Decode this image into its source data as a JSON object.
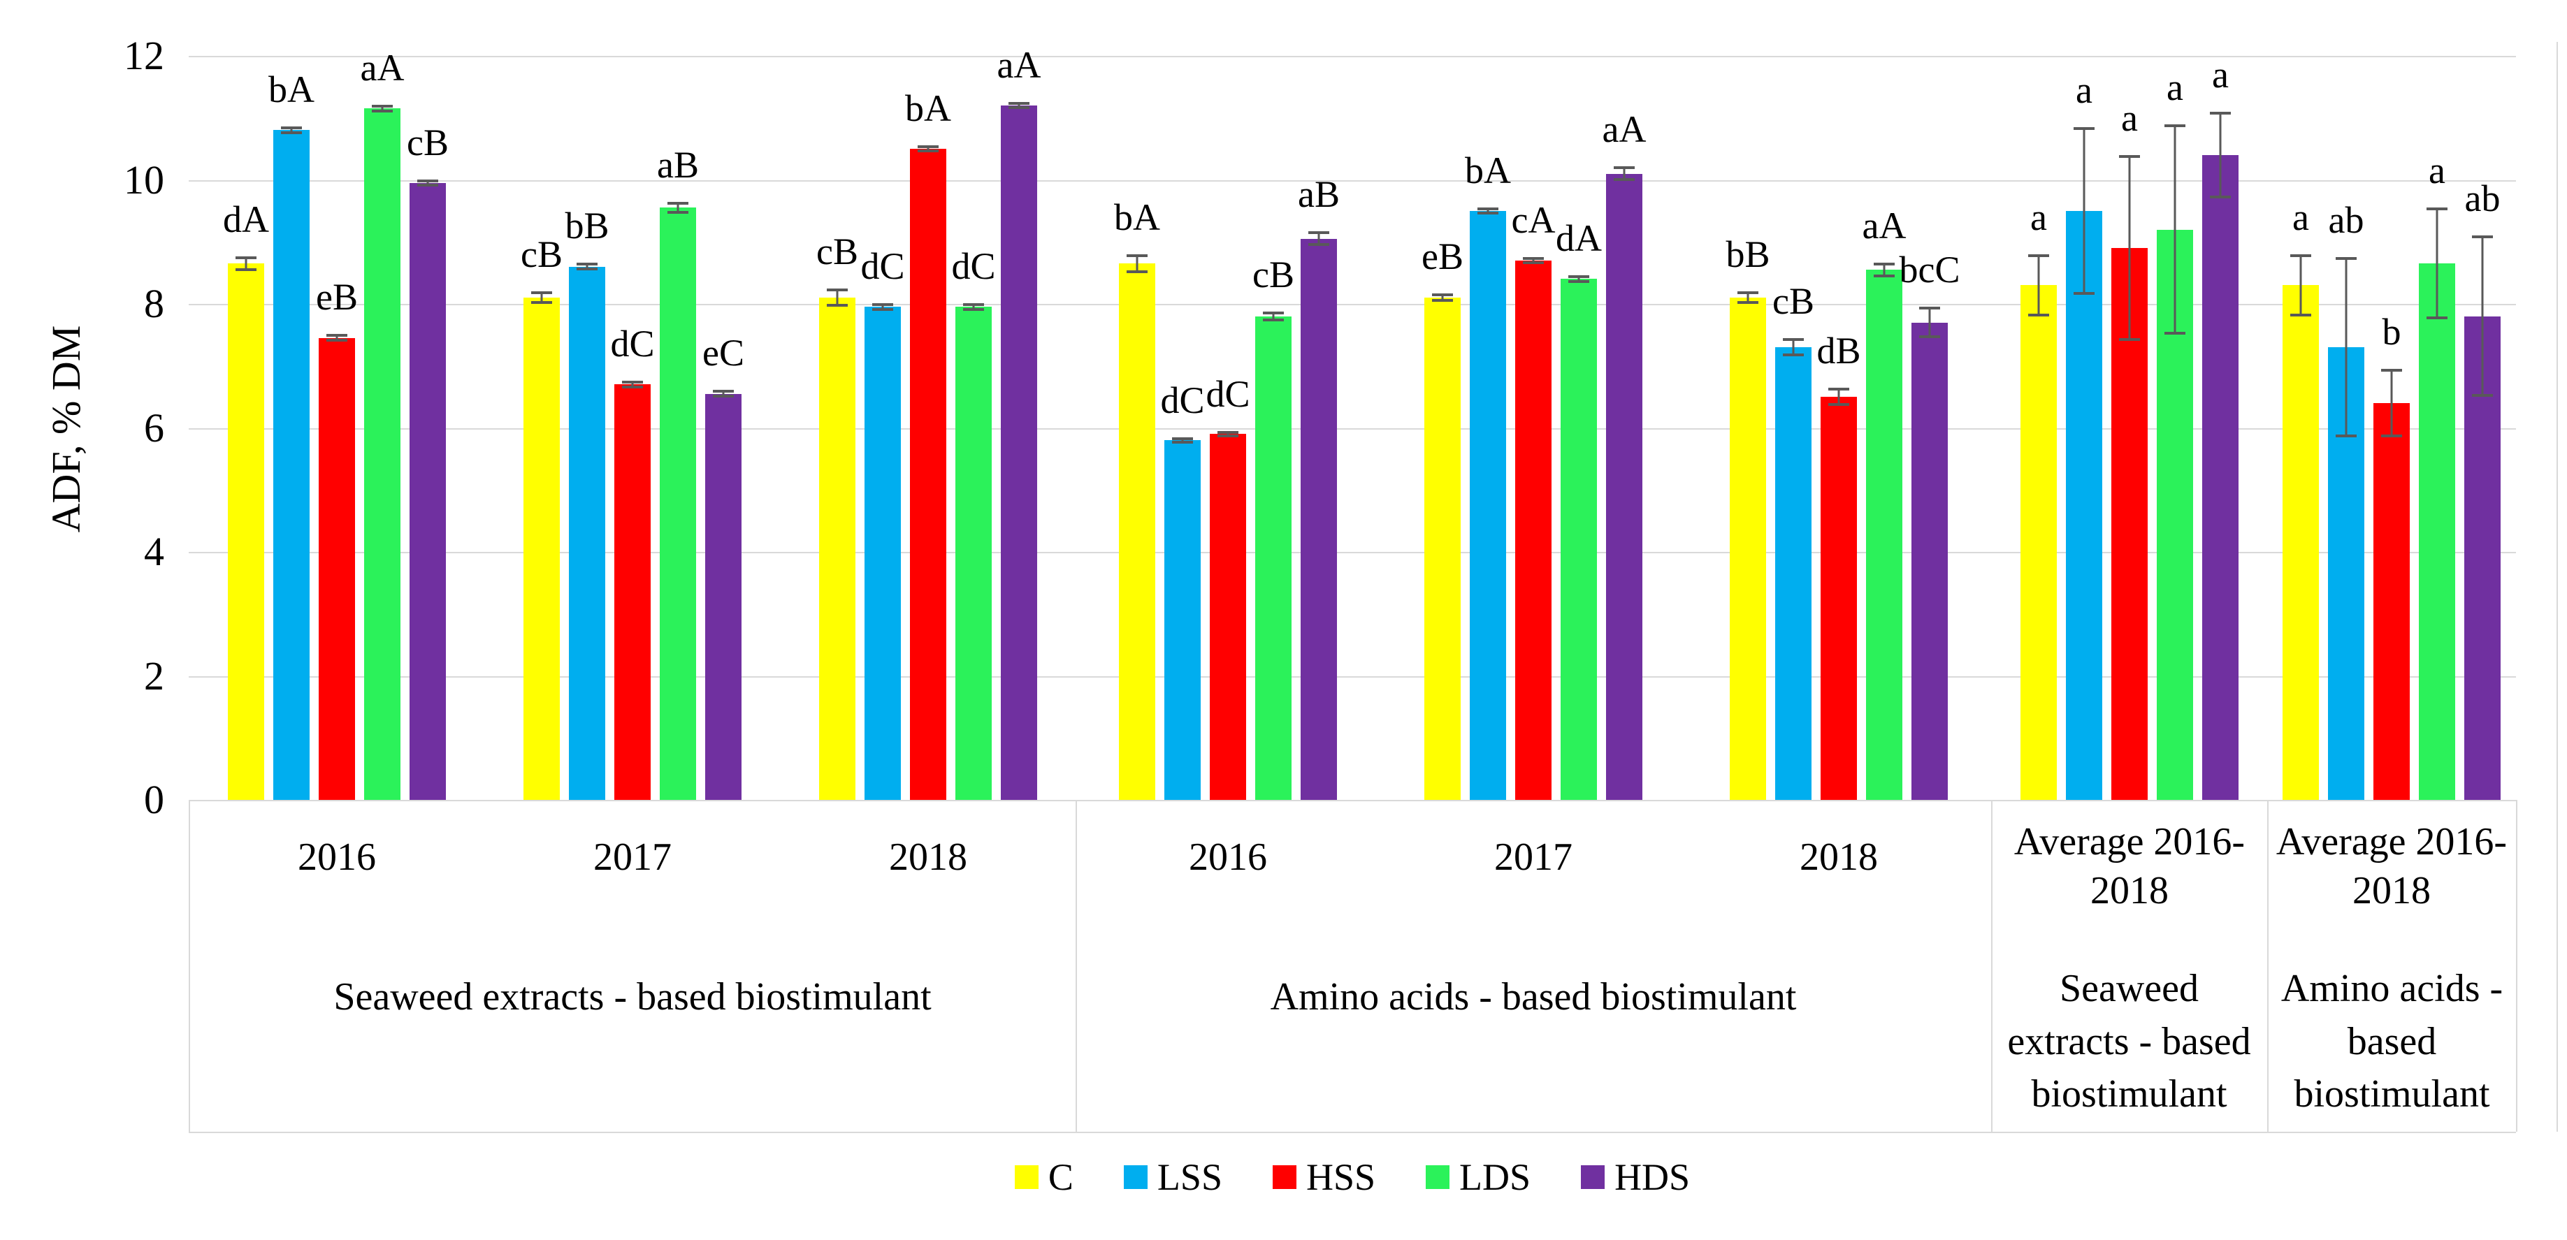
{
  "chart_data": {
    "type": "bar",
    "title": "",
    "ylabel": "ADF, % DM",
    "ylim": [
      0,
      12
    ],
    "yticks": [
      0,
      2,
      4,
      6,
      8,
      10,
      12
    ],
    "grid": true,
    "legend_position": "bottom",
    "colors": {
      "gridline": "#D9D9D9",
      "border": "#D9D9D9",
      "error_bar": "#595959"
    },
    "series": [
      {
        "name": "C",
        "color": "#FFFF00"
      },
      {
        "name": "LSS",
        "color": "#00AEEF"
      },
      {
        "name": "HSS",
        "color": "#FF0000"
      },
      {
        "name": "LDS",
        "color": "#2BF25A"
      },
      {
        "name": "HDS",
        "color": "#7030A0"
      }
    ],
    "sections": [
      {
        "label": "Seaweed extracts - based biostimulant",
        "group_indices": [
          0,
          1,
          2
        ]
      },
      {
        "label": "Amino acids - based biostimulant",
        "group_indices": [
          3,
          4,
          5
        ]
      },
      {
        "label": "Seaweed extracts - based biostimulant",
        "group_indices": [
          6
        ]
      },
      {
        "label": "Amino acids - based biostimulant",
        "group_indices": [
          7
        ]
      }
    ],
    "groups": [
      {
        "category": "2016",
        "values": [
          8.65,
          10.8,
          7.45,
          11.15,
          9.95
        ],
        "errors": [
          0.12,
          0.06,
          0.06,
          0.06,
          0.06
        ],
        "sig_labels": [
          "dA",
          "bA",
          "eB",
          "aA",
          "cB"
        ]
      },
      {
        "category": "2017",
        "values": [
          8.1,
          8.6,
          6.7,
          9.55,
          6.55
        ],
        "errors": [
          0.1,
          0.06,
          0.06,
          0.1,
          0.06
        ],
        "sig_labels": [
          "cB",
          "bB",
          "dC",
          "aB",
          "eC"
        ]
      },
      {
        "category": "2018",
        "values": [
          8.1,
          7.95,
          10.5,
          7.95,
          11.2
        ],
        "errors": [
          0.15,
          0.06,
          0.06,
          0.06,
          0.06
        ],
        "sig_labels": [
          "cB",
          "dC",
          "bA",
          "dC",
          "aA"
        ]
      },
      {
        "category": "2016",
        "values": [
          8.65,
          5.8,
          5.9,
          7.8,
          9.05
        ],
        "errors": [
          0.15,
          0.05,
          0.05,
          0.08,
          0.12
        ],
        "sig_labels": [
          "bA",
          "dC",
          "dC",
          "cB",
          "aB"
        ]
      },
      {
        "category": "2017",
        "values": [
          8.1,
          9.5,
          8.7,
          8.4,
          10.1
        ],
        "errors": [
          0.07,
          0.06,
          0.06,
          0.06,
          0.12
        ],
        "sig_labels": [
          "eB",
          "bA",
          "cA",
          "dA",
          "aA"
        ]
      },
      {
        "category": "2018",
        "values": [
          8.1,
          7.3,
          6.5,
          8.55,
          7.7
        ],
        "errors": [
          0.1,
          0.15,
          0.15,
          0.12,
          0.25
        ],
        "sig_labels": [
          "bB",
          "cB",
          "dB",
          "aA",
          "bcC"
        ]
      },
      {
        "category": "Average 2016-2018",
        "values": [
          8.3,
          9.5,
          8.9,
          9.2,
          10.4
        ],
        "errors": [
          0.5,
          1.35,
          1.5,
          1.7,
          0.7
        ],
        "sig_labels": [
          "a",
          "a",
          "a",
          "a",
          "a"
        ]
      },
      {
        "category": "Average 2016-2018",
        "values": [
          8.3,
          7.3,
          6.4,
          8.65,
          7.8
        ],
        "errors": [
          0.5,
          1.45,
          0.55,
          0.9,
          1.3
        ],
        "sig_labels": [
          "a",
          "ab",
          "b",
          "a",
          "ab"
        ]
      }
    ],
    "legend": [
      "C",
      "LSS",
      "HSS",
      "LDS",
      "HDS"
    ]
  }
}
